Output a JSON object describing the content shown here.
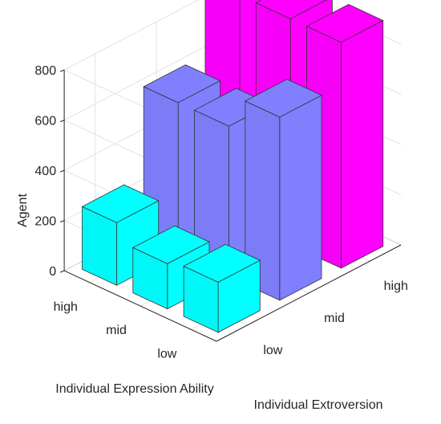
{
  "chart_data": {
    "type": "bar3d",
    "zlabel": "Agent",
    "xlabel": "Individual Extroversion",
    "ylabel": "Individual Expression Ability",
    "x_categories": [
      "low",
      "mid",
      "high"
    ],
    "y_categories": [
      "high",
      "mid",
      "low"
    ],
    "zlim": [
      0,
      800
    ],
    "z_ticks": [
      "0",
      "200",
      "400",
      "600",
      "800"
    ],
    "grid": true,
    "colors": {
      "low": "#00ffff",
      "mid": "#8080ff",
      "high": "#ff00ff"
    },
    "series": [
      {
        "name": "high",
        "values": [
          250,
          600,
          900
        ]
      },
      {
        "name": "mid",
        "values": [
          180,
          600,
          900
        ]
      },
      {
        "name": "low",
        "values": [
          200,
          730,
          900
        ]
      }
    ]
  }
}
